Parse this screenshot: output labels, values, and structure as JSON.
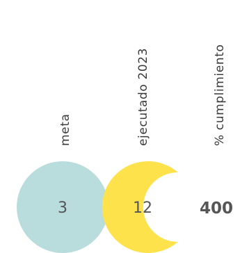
{
  "chart_data": {
    "type": "table",
    "columns": [
      "meta",
      "ejecutado 2023",
      "% cumplimiento"
    ],
    "rows": [
      {
        "meta": 3,
        "ejecutado 2023": 12,
        "% cumplimiento": 400
      }
    ]
  },
  "display": {
    "meta_value": "3",
    "ejecutado_value": "12",
    "cumplimiento_value": "400"
  },
  "colors": {
    "meta": "#b9dcdc",
    "ejecutado": "#fde24c",
    "text": "#3a3a3a",
    "value_text": "#555555",
    "background": "#ffffff"
  }
}
